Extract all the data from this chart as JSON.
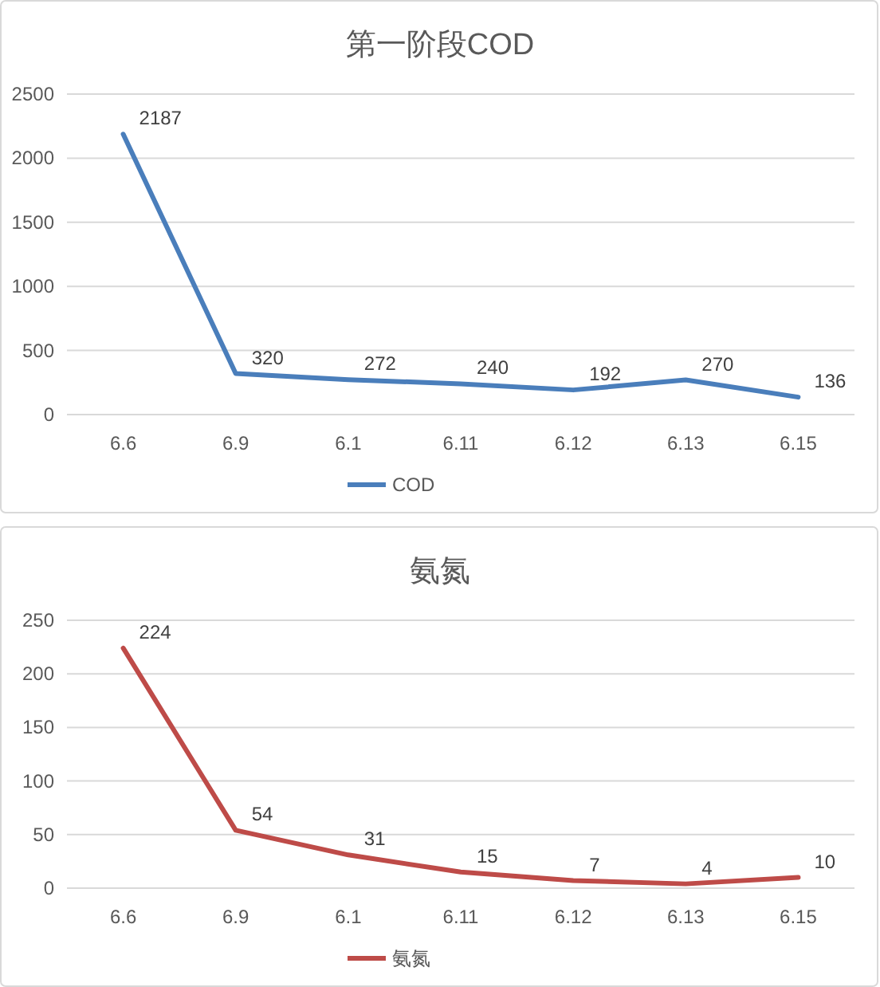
{
  "chart_data": [
    {
      "type": "line",
      "title": "第一阶段COD",
      "categories": [
        "6.6",
        "6.9",
        "6.1",
        "6.11",
        "6.12",
        "6.13",
        "6.15"
      ],
      "series": [
        {
          "name": "COD",
          "color": "#4a7ebb",
          "values": [
            2187,
            320,
            272,
            240,
            192,
            270,
            136
          ]
        }
      ],
      "ylim": [
        0,
        2500
      ],
      "yticks": [
        0,
        500,
        1000,
        1500,
        2000,
        2500
      ],
      "grid": "y",
      "legend": "bottom",
      "data_labels": true
    },
    {
      "type": "line",
      "title": "氨氮",
      "categories": [
        "6.6",
        "6.9",
        "6.1",
        "6.11",
        "6.12",
        "6.13",
        "6.15"
      ],
      "series": [
        {
          "name": "氨氮",
          "color": "#be4b48",
          "values": [
            224,
            54,
            31,
            15,
            7,
            4,
            10
          ]
        }
      ],
      "ylim": [
        0,
        250
      ],
      "yticks": [
        0,
        50,
        100,
        150,
        200,
        250
      ],
      "grid": "y",
      "legend": "bottom",
      "data_labels": true
    }
  ]
}
